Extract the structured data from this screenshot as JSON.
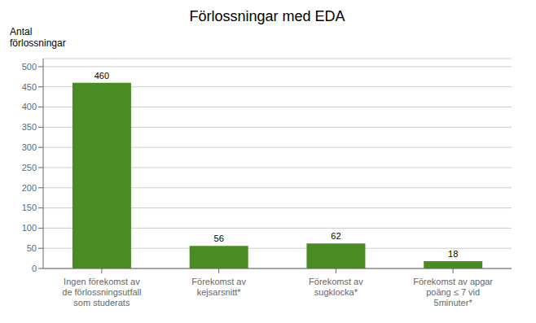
{
  "chart_data": {
    "type": "bar",
    "title": "Förlossningar med EDA",
    "ylabel": "Antal\nförlossningar",
    "categories": [
      "Ingen förekomst av\nde förlossningsutfall\nsom studerats",
      "Förekomst av\nkejsarsnitt*",
      "Förekomst av\nsugklocka*",
      "Förekomst av apgar\npoäng ≤ 7 vid\n5minuter*"
    ],
    "values": [
      460,
      56,
      62,
      18
    ],
    "color": "#4a8c24",
    "ylim": [
      0,
      520
    ],
    "yticks": [
      0,
      50,
      100,
      150,
      200,
      250,
      300,
      350,
      400,
      450,
      500
    ],
    "grid": true,
    "data_labels": true
  }
}
